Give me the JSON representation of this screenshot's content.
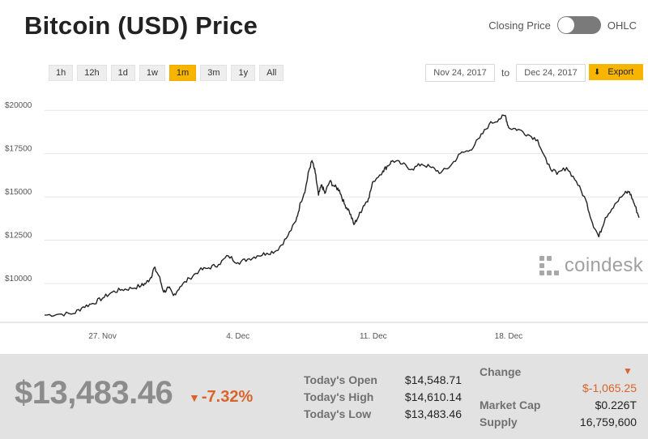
{
  "header": {
    "title": "Bitcoin (USD) Price",
    "toggle_left": "Closing Price",
    "toggle_right": "OHLC"
  },
  "ranges": [
    {
      "label": "1h",
      "active": false
    },
    {
      "label": "12h",
      "active": false
    },
    {
      "label": "1d",
      "active": false
    },
    {
      "label": "1w",
      "active": false
    },
    {
      "label": "1m",
      "active": true
    },
    {
      "label": "3m",
      "active": false
    },
    {
      "label": "1y",
      "active": false
    },
    {
      "label": "All",
      "active": false
    }
  ],
  "date_range": {
    "from": "Nov 24, 2017",
    "to_label": "to",
    "to": "Dec 24, 2017",
    "export_label": "Export"
  },
  "brand": {
    "name": "coindesk"
  },
  "colors": {
    "accent": "#f7b500",
    "negative": "#d9642b",
    "line": "#222222"
  },
  "chart_data": {
    "type": "line",
    "title": "Bitcoin (USD) Price",
    "xlabel": "",
    "ylabel": "",
    "x_start": "2017-11-24",
    "x_end": "2017-12-24",
    "x_ticks": [
      {
        "label": "27. Nov",
        "date": "2017-11-27"
      },
      {
        "label": "4. Dec",
        "date": "2017-12-04"
      },
      {
        "label": "11. Dec",
        "date": "2017-12-11"
      },
      {
        "label": "18. Dec",
        "date": "2017-12-18"
      }
    ],
    "y_ticks": [
      {
        "label": "$10000",
        "value": 10000
      },
      {
        "label": "$12500",
        "value": 12500
      },
      {
        "label": "$15000",
        "value": 15000
      },
      {
        "label": "$17500",
        "value": 17500
      },
      {
        "label": "$20000",
        "value": 20000
      }
    ],
    "ylim": [
      7800,
      20900
    ],
    "grid": true,
    "series": [
      {
        "points": [
          [
            "2017-11-24T00:00",
            8170
          ],
          [
            "2017-11-24T18:00",
            8230
          ],
          [
            "2017-11-25T12:00",
            8260
          ],
          [
            "2017-11-26T00:00",
            8650
          ],
          [
            "2017-11-26T12:00",
            8850
          ],
          [
            "2017-11-27T00:00",
            9150
          ],
          [
            "2017-11-27T12:00",
            9500
          ],
          [
            "2017-11-28T00:00",
            9650
          ],
          [
            "2017-11-28T12:00",
            9720
          ],
          [
            "2017-11-29T00:00",
            9880
          ],
          [
            "2017-11-29T06:00",
            10020
          ],
          [
            "2017-11-29T12:00",
            10350
          ],
          [
            "2017-11-29T16:00",
            10900
          ],
          [
            "2017-11-29T22:00",
            10450
          ],
          [
            "2017-11-30T04:00",
            9500
          ],
          [
            "2017-11-30T10:00",
            9750
          ],
          [
            "2017-11-30T16:00",
            9300
          ],
          [
            "2017-12-01T00:00",
            9800
          ],
          [
            "2017-12-01T12:00",
            10300
          ],
          [
            "2017-12-02T00:00",
            10750
          ],
          [
            "2017-12-02T12:00",
            10900
          ],
          [
            "2017-12-03T00:00",
            11100
          ],
          [
            "2017-12-03T12:00",
            11600
          ],
          [
            "2017-12-04T00:00",
            11200
          ],
          [
            "2017-12-04T12:00",
            11400
          ],
          [
            "2017-12-05T00:00",
            11600
          ],
          [
            "2017-12-05T12:00",
            11750
          ],
          [
            "2017-12-06T00:00",
            11900
          ],
          [
            "2017-12-06T12:00",
            12600
          ],
          [
            "2017-12-07T00:00",
            13600
          ],
          [
            "2017-12-07T06:00",
            14700
          ],
          [
            "2017-12-07T12:00",
            15500
          ],
          [
            "2017-12-07T16:00",
            16500
          ],
          [
            "2017-12-07T20:00",
            17100
          ],
          [
            "2017-12-08T00:00",
            16400
          ],
          [
            "2017-12-08T04:00",
            15100
          ],
          [
            "2017-12-08T08:00",
            15700
          ],
          [
            "2017-12-08T12:00",
            15200
          ],
          [
            "2017-12-08T18:00",
            15900
          ],
          [
            "2017-12-09T00:00",
            15600
          ],
          [
            "2017-12-09T06:00",
            15400
          ],
          [
            "2017-12-09T12:00",
            14600
          ],
          [
            "2017-12-09T18:00",
            14200
          ],
          [
            "2017-12-10T00:00",
            13400
          ],
          [
            "2017-12-10T06:00",
            13900
          ],
          [
            "2017-12-10T12:00",
            14500
          ],
          [
            "2017-12-10T18:00",
            14900
          ],
          [
            "2017-12-11T00:00",
            15900
          ],
          [
            "2017-12-11T12:00",
            16500
          ],
          [
            "2017-12-11T18:00",
            16800
          ],
          [
            "2017-12-12T00:00",
            17100
          ],
          [
            "2017-12-12T12:00",
            16900
          ],
          [
            "2017-12-13T00:00",
            16600
          ],
          [
            "2017-12-13T12:00",
            16900
          ],
          [
            "2017-12-14T00:00",
            16700
          ],
          [
            "2017-12-14T12:00",
            16400
          ],
          [
            "2017-12-15T00:00",
            16800
          ],
          [
            "2017-12-15T12:00",
            17500
          ],
          [
            "2017-12-16T00:00",
            17700
          ],
          [
            "2017-12-16T12:00",
            18400
          ],
          [
            "2017-12-17T00:00",
            19200
          ],
          [
            "2017-12-17T12:00",
            19500
          ],
          [
            "2017-12-17T20:00",
            19700
          ],
          [
            "2017-12-18T00:00",
            19000
          ],
          [
            "2017-12-18T12:00",
            18900
          ],
          [
            "2017-12-19T00:00",
            18600
          ],
          [
            "2017-12-19T12:00",
            18300
          ],
          [
            "2017-12-20T00:00",
            16900
          ],
          [
            "2017-12-20T12:00",
            16300
          ],
          [
            "2017-12-21T00:00",
            16700
          ],
          [
            "2017-12-21T12:00",
            15900
          ],
          [
            "2017-12-22T00:00",
            14800
          ],
          [
            "2017-12-22T08:00",
            13500
          ],
          [
            "2017-12-22T16:00",
            12700
          ],
          [
            "2017-12-23T00:00",
            13800
          ],
          [
            "2017-12-23T12:00",
            14600
          ],
          [
            "2017-12-24T00:00",
            15200
          ],
          [
            "2017-12-24T06:00",
            15300
          ],
          [
            "2017-12-24T12:00",
            14600
          ],
          [
            "2017-12-24T18:00",
            13800
          ]
        ]
      }
    ]
  },
  "stats": {
    "price": "$13,483.46",
    "change_pct": "-7.32%",
    "open_label": "Today's Open",
    "open_value": "$14,548.71",
    "high_label": "Today's High",
    "high_value": "$14,610.14",
    "low_label": "Today's Low",
    "low_value": "$13,483.46",
    "change_label": "Change",
    "change_value": "$-1,065.25",
    "mcap_label": "Market Cap",
    "mcap_value": "$0.226T",
    "supply_label": "Supply",
    "supply_value": "16,759,600"
  }
}
